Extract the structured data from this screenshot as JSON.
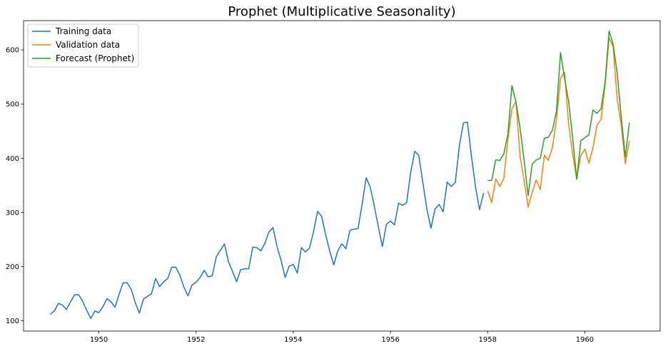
{
  "chart_data": {
    "type": "line",
    "title": "Prophet (Multiplicative Seasonality)",
    "xlabel": "",
    "ylabel": "",
    "xlim": [
      1948.45,
      1961.55
    ],
    "ylim": [
      81,
      654
    ],
    "x_ticks": [
      1950,
      1952,
      1954,
      1956,
      1958,
      1960
    ],
    "y_ticks": [
      100,
      200,
      300,
      400,
      500,
      600
    ],
    "grid": false,
    "legend_position": "top-left",
    "series": [
      {
        "name": "Training data",
        "color": "#1f77b4",
        "start_year": 1949,
        "step": 0.0833333,
        "values": [
          112,
          118,
          132,
          129,
          121,
          135,
          148,
          148,
          136,
          119,
          104,
          118,
          115,
          126,
          141,
          135,
          125,
          149,
          170,
          170,
          158,
          133,
          114,
          140,
          145,
          150,
          178,
          163,
          172,
          178,
          199,
          199,
          184,
          162,
          146,
          166,
          171,
          180,
          193,
          181,
          183,
          218,
          230,
          242,
          209,
          191,
          172,
          194,
          196,
          196,
          236,
          235,
          229,
          243,
          264,
          272,
          237,
          211,
          180,
          201,
          204,
          188,
          235,
          227,
          234,
          264,
          302,
          293,
          259,
          229,
          203,
          229,
          242,
          233,
          267,
          269,
          270,
          315,
          364,
          347,
          312,
          274,
          237,
          278,
          284,
          277,
          317,
          313,
          318,
          374,
          413,
          405,
          355,
          306,
          271,
          306,
          315,
          301,
          356,
          348,
          355,
          422,
          465,
          467,
          404,
          347,
          305,
          336
        ]
      },
      {
        "name": "Validation data",
        "color": "#ff7f0e",
        "start_year": 1958,
        "step": 0.0833333,
        "values": [
          340,
          318,
          362,
          348,
          363,
          435,
          491,
          505,
          404,
          359,
          310,
          337,
          360,
          342,
          406,
          396,
          420,
          472,
          548,
          559,
          463,
          407,
          362,
          405,
          417,
          391,
          419,
          461,
          472,
          535,
          622,
          606,
          508,
          461,
          390,
          432
        ]
      },
      {
        "name": "Forecast (Prophet)",
        "color": "#2ca02c",
        "start_year": 1958,
        "step": 0.0833333,
        "values": [
          359,
          359,
          397,
          396,
          408,
          445,
          534,
          504,
          456,
          397,
          331,
          389,
          397,
          400,
          437,
          439,
          452,
          487,
          595,
          547,
          505,
          437,
          361,
          432,
          438,
          443,
          489,
          483,
          491,
          540,
          635,
          610,
          557,
          475,
          402,
          466
        ]
      }
    ]
  }
}
